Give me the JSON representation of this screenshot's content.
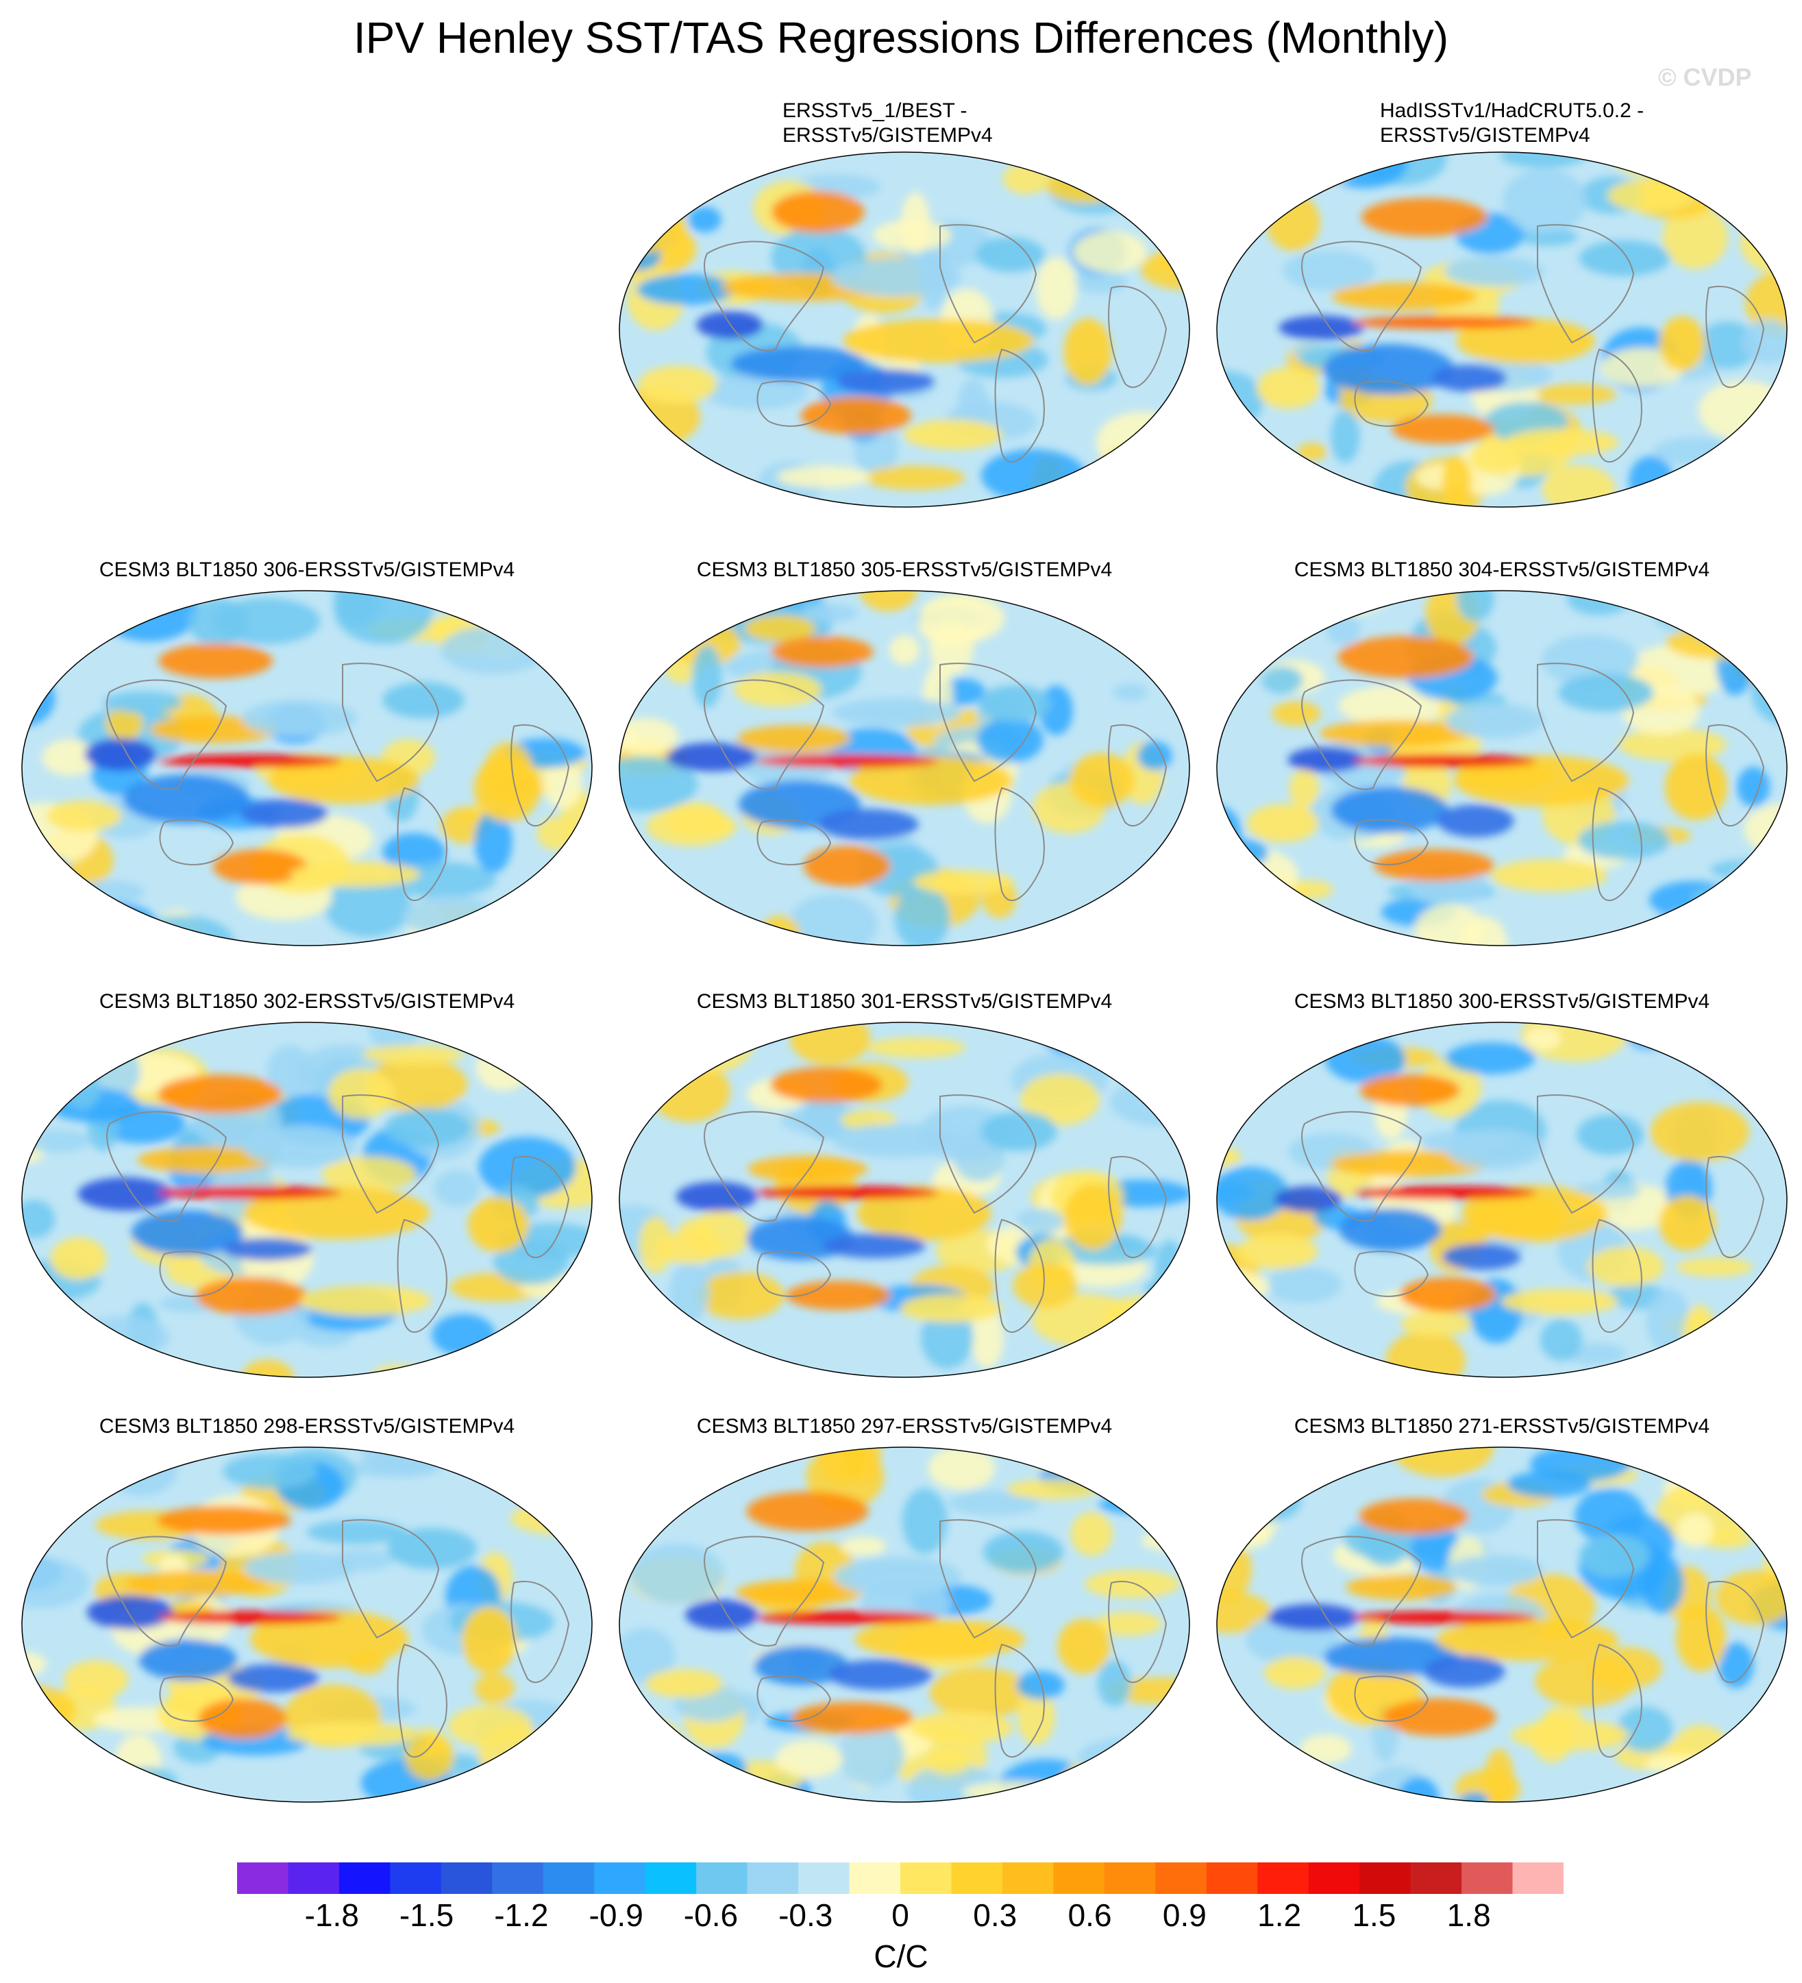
{
  "title": "IPV Henley SST/TAS Regressions Differences (Monthly)",
  "watermark": "© CVDP",
  "chart_data": {
    "type": "heatmap",
    "projection": "Robinson (global maps, centered on the Pacific)",
    "variable": "IPV Henley SST/TAS regression differences",
    "units": "C/C",
    "panels": [
      {
        "title_lines": [
          "ERSSTv5_1/BEST -",
          "ERSSTv5/GISTEMPv4"
        ]
      },
      {
        "title_lines": [
          "HadISSTv1/HadCRUT5.0.2 -",
          "ERSSTv5/GISTEMPv4"
        ]
      },
      {
        "title_lines": [
          "CESM3 BLT1850 306-ERSSTv5/GISTEMPv4"
        ]
      },
      {
        "title_lines": [
          "CESM3 BLT1850 305-ERSSTv5/GISTEMPv4"
        ]
      },
      {
        "title_lines": [
          "CESM3 BLT1850 304-ERSSTv5/GISTEMPv4"
        ]
      },
      {
        "title_lines": [
          "CESM3 BLT1850 302-ERSSTv5/GISTEMPv4"
        ]
      },
      {
        "title_lines": [
          "CESM3 BLT1850 301-ERSSTv5/GISTEMPv4"
        ]
      },
      {
        "title_lines": [
          "CESM3 BLT1850 300-ERSSTv5/GISTEMPv4"
        ]
      },
      {
        "title_lines": [
          "CESM3 BLT1850 298-ERSSTv5/GISTEMPv4"
        ]
      },
      {
        "title_lines": [
          "CESM3 BLT1850 297-ERSSTv5/GISTEMPv4"
        ]
      },
      {
        "title_lines": [
          "CESM3 BLT1850 271-ERSSTv5/GISTEMPv4"
        ]
      }
    ],
    "colorbar": {
      "min": -2.1,
      "max": 2.1,
      "step": 0.15,
      "tick_labels": [
        "-1.8",
        "-1.5",
        "-1.2",
        "-0.9",
        "-0.6",
        "-0.3",
        "0",
        "0.3",
        "0.6",
        "0.9",
        "1.2",
        "1.5",
        "1.8"
      ],
      "colors": [
        "#8a2be2",
        "#5a23f0",
        "#1414ff",
        "#1e3cf0",
        "#2855dc",
        "#3270e6",
        "#2c8cf0",
        "#2ea8ff",
        "#0ac0ff",
        "#6ec8f0",
        "#9cd6f4",
        "#c0e6f6",
        "#fff9bd",
        "#ffe762",
        "#ffd22e",
        "#ffbe1e",
        "#ffa00a",
        "#ff8c0a",
        "#ff6e0a",
        "#ff4a0a",
        "#ff1e0a",
        "#f00a0a",
        "#d20a0a",
        "#c81e1e",
        "#e05a5a",
        "#ffb4b4"
      ],
      "label": "C/C"
    }
  }
}
